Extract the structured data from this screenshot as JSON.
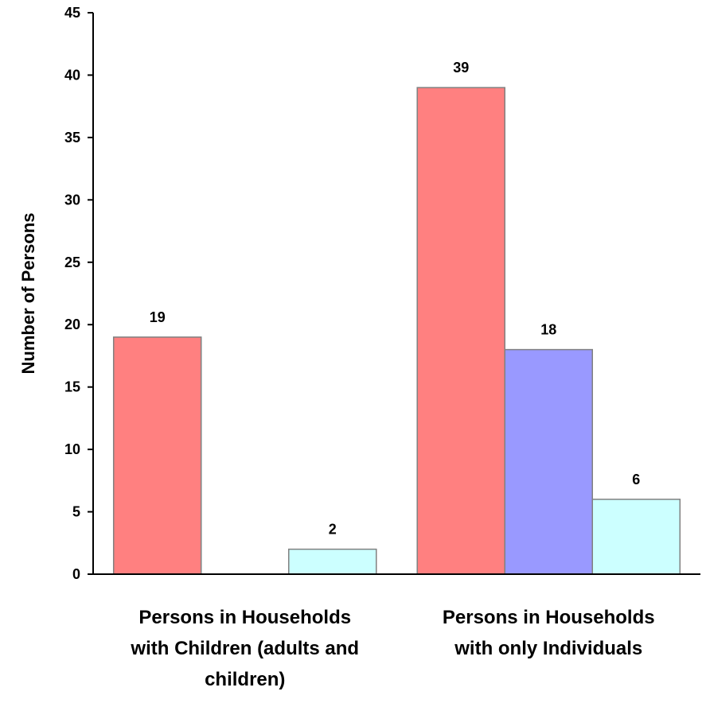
{
  "chart_data": {
    "type": "bar",
    "title": "",
    "xlabel": "",
    "ylabel": "Number of Persons",
    "ylim": [
      0,
      45
    ],
    "yticks": [
      0,
      5,
      10,
      15,
      20,
      25,
      30,
      35,
      40,
      45
    ],
    "categories": [
      [
        "Persons in Households",
        "with Children (adults and",
        "children)"
      ],
      [
        "Persons in Households",
        "with only Individuals"
      ]
    ],
    "series": [
      {
        "color": "#ff8080",
        "values": [
          19,
          39
        ]
      },
      {
        "color": "#9999ff",
        "values": [
          0,
          18
        ]
      },
      {
        "color": "#ccffff",
        "values": [
          2,
          6
        ]
      }
    ],
    "data_labels": [
      [
        "19",
        "39"
      ],
      [
        "",
        "18"
      ],
      [
        "2",
        "6"
      ]
    ],
    "grid": false,
    "legend": "none"
  }
}
